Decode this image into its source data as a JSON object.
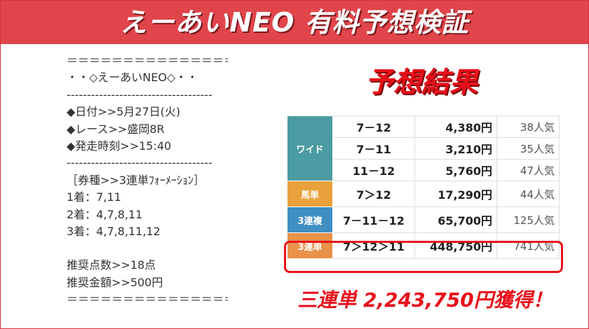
{
  "header": {
    "title": "えーあいNEO 有料予想検証"
  },
  "left": {
    "lines": [
      "＝＝＝＝＝＝＝＝＝＝＝＝＝＝＝",
      "・・◇えーあいNEO◇・・",
      "------------------------------------",
      "◆日付>>5月27日(火)",
      "◆レース>>盛岡8R",
      "◆発走時刻>>15:40",
      "------------------------------------",
      "［券種>>3連単ﾌｫｰﾒｰｼｮﾝ］",
      "1着：7,11",
      "2着：4,7,8,11",
      "3着：4,7,8,11,12",
      "推奨点数>>18点",
      "推奨金額>>500円",
      "＝＝＝＝＝＝＝＝＝＝＝＝＝＝＝"
    ]
  },
  "result": {
    "title": "予想結果",
    "groups": [
      {
        "type": "ワイド",
        "color": "#4b9ca2",
        "rows": [
          [
            "7－12",
            "4,380円",
            "38人気"
          ],
          [
            "7－11",
            "3,210円",
            "35人気"
          ],
          [
            "11－12",
            "5,760円",
            "47人気"
          ]
        ]
      },
      {
        "type": "馬単",
        "color": "#e9a23b",
        "rows": [
          [
            "7＞12",
            "17,290円",
            "44人気"
          ]
        ]
      },
      {
        "type": "3連複",
        "color": "#3f8fc2",
        "rows": [
          [
            "7－11－12",
            "65,700円",
            "125人気"
          ]
        ]
      },
      {
        "type": "3連単",
        "color": "#e8924a",
        "rows": [
          [
            "7＞12＞11",
            "448,750円",
            "741人気"
          ]
        ]
      }
    ],
    "summary": "三連単 2,243,750円獲得！"
  }
}
